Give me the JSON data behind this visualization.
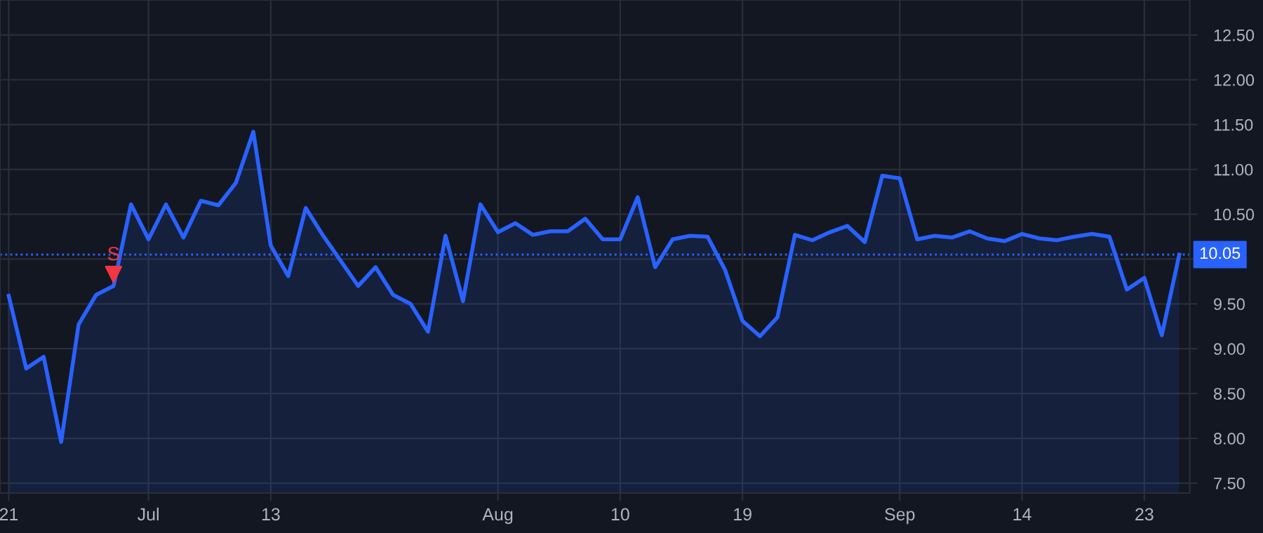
{
  "chart_data": {
    "type": "area",
    "categories": [
      "21",
      null,
      null,
      null,
      null,
      null,
      null,
      null,
      "Jul",
      null,
      null,
      null,
      null,
      null,
      null,
      "13",
      null,
      null,
      null,
      null,
      null,
      null,
      null,
      null,
      null,
      null,
      null,
      null,
      "Aug",
      null,
      null,
      null,
      null,
      null,
      null,
      "10",
      null,
      null,
      null,
      null,
      null,
      null,
      "19",
      null,
      null,
      null,
      null,
      null,
      null,
      null,
      null,
      "Sep",
      null,
      null,
      null,
      null,
      null,
      null,
      "14",
      null,
      null,
      null,
      null,
      null,
      null,
      "23",
      null,
      null
    ],
    "series": [
      {
        "color": "#2962ff",
        "values": [
          9.59,
          8.78,
          8.91,
          7.96,
          9.27,
          9.6,
          9.7,
          10.61,
          10.22,
          10.61,
          10.24,
          10.65,
          10.6,
          10.85,
          11.42,
          10.15,
          9.81,
          10.57,
          10.26,
          9.98,
          9.7,
          9.91,
          9.6,
          9.5,
          9.19,
          10.26,
          9.53,
          10.61,
          10.3,
          10.4,
          10.27,
          10.31,
          10.31,
          10.45,
          10.22,
          10.22,
          10.69,
          9.91,
          10.22,
          10.26,
          10.25,
          9.88,
          9.31,
          9.14,
          9.35,
          10.27,
          10.21,
          10.3,
          10.37,
          10.19,
          10.93,
          10.9,
          10.22,
          10.26,
          10.24,
          10.31,
          10.23,
          10.2,
          10.28,
          10.23,
          10.21,
          10.25,
          10.28,
          10.25,
          9.66,
          9.79,
          9.15,
          10.05
        ]
      },
      {
        "type": "scatter",
        "color": "#f23645",
        "marker": "triangle",
        "values": [
          null,
          null,
          null,
          null,
          null,
          null,
          9.83,
          null,
          null,
          null,
          null,
          null,
          null,
          null,
          null,
          null,
          null,
          null,
          null,
          null,
          null,
          null,
          null,
          null,
          null,
          null,
          null,
          null,
          null,
          null,
          null,
          null,
          null,
          null,
          null,
          null,
          null,
          null,
          null,
          null,
          null,
          null,
          null,
          null,
          null,
          null,
          null,
          null,
          null,
          null,
          null,
          null,
          null,
          null,
          null,
          null,
          null,
          null,
          null,
          null,
          null,
          null,
          null,
          null,
          null,
          null,
          null,
          null
        ]
      }
    ],
    "annotations": [
      "S"
    ],
    "ylim": [
      7.39,
      12.89
    ],
    "yticks": [
      {
        "value": 7.5,
        "label": "7.50"
      },
      {
        "value": 8,
        "label": "8.00"
      },
      {
        "value": 8.5,
        "label": "8.50"
      },
      {
        "value": 9,
        "label": "9.00"
      },
      {
        "value": 9.5,
        "label": "9.50"
      },
      {
        "value": 10,
        "label": null
      },
      {
        "value": 10.5,
        "label": "10.50"
      },
      {
        "value": 11,
        "label": "11.00"
      },
      {
        "value": 11.5,
        "label": "11.50"
      },
      {
        "value": 12,
        "label": "12.00"
      },
      {
        "value": 12.5,
        "label": "12.50"
      }
    ],
    "ref_lines": [
      {
        "axis": "y",
        "value": 10.05,
        "label": "10.05",
        "color": "#2962ff",
        "line_style": "dotted"
      }
    ],
    "grid": true,
    "legend": false
  }
}
